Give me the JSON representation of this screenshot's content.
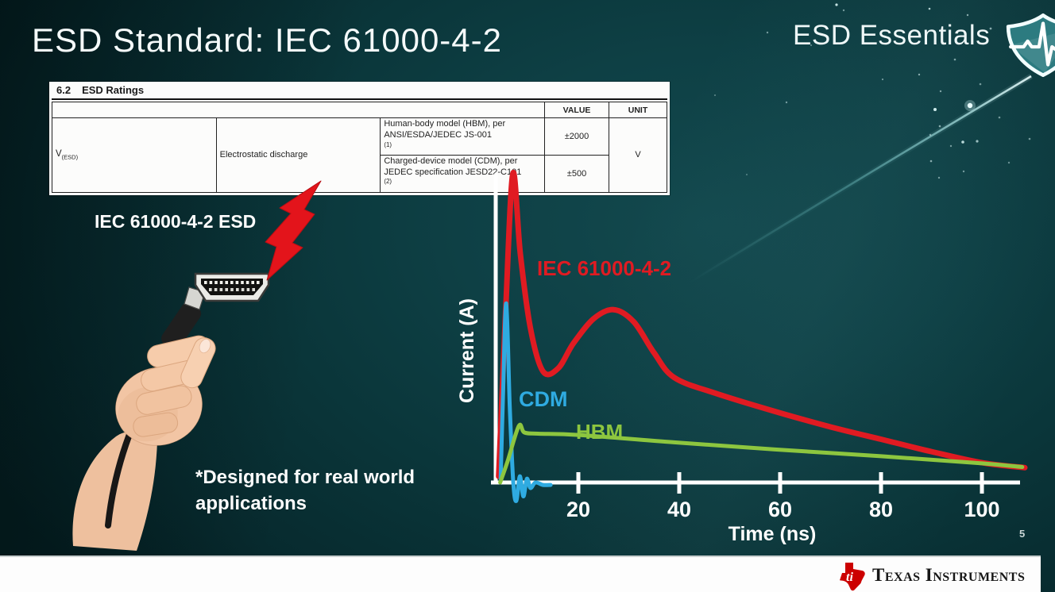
{
  "slide": {
    "title": "ESD Standard: IEC 61000-4-2",
    "brand": "ESD Essentials",
    "page_number": "5"
  },
  "ratings_table": {
    "section_no": "6.2",
    "section_title": "ESD Ratings",
    "headers": {
      "value": "VALUE",
      "unit": "UNIT"
    },
    "symbol": "V",
    "symbol_subscript": "(ESD)",
    "parameter": "Electrostatic discharge",
    "rows": [
      {
        "description": "Human-body model (HBM), per ANSI/ESDA/JEDEC JS-001",
        "superscript": "(1)",
        "value": "±2000"
      },
      {
        "description": "Charged-device model (CDM), per JEDEC specification JESD22-C101",
        "superscript": "(2)",
        "value": "±500"
      }
    ],
    "unit": "V"
  },
  "illustration": {
    "label": "IEC 61000-4-2 ESD",
    "footnote_lines": [
      "*Designed for real world",
      "applications"
    ]
  },
  "chart_data": {
    "type": "line",
    "title": "",
    "xlabel": "Time (ns)",
    "ylabel": "Current (A)",
    "x_ticks": [
      20,
      40,
      60,
      80,
      100
    ],
    "xlim": [
      0,
      110
    ],
    "ylim": [
      -0.07,
      1.05
    ],
    "y_unit": "normalized (IEC peak = 1.0), no y tick labels shown",
    "grid": false,
    "legend_position": "inline-labels",
    "axis_color": "#ffffff",
    "series": [
      {
        "name": "IEC 61000-4-2",
        "color": "#e01b22",
        "x": [
          4.2,
          5.5,
          7,
          8.5,
          10.5,
          13,
          16,
          19,
          23,
          27,
          31,
          35,
          39,
          47,
          59,
          70,
          80,
          90,
          100,
          108.5
        ],
        "y": [
          0.02,
          0.52,
          1.0,
          0.74,
          0.5,
          0.36,
          0.37,
          0.45,
          0.53,
          0.56,
          0.52,
          0.42,
          0.34,
          0.29,
          0.23,
          0.18,
          0.14,
          0.1,
          0.064,
          0.048
        ]
      },
      {
        "name": "CDM",
        "color": "#2fabe1",
        "x": [
          4.6,
          5.1,
          5.7,
          6.4,
          7.1,
          7.7,
          8.4,
          9.1,
          9.8,
          10.5,
          11.5,
          13,
          14.5
        ],
        "y": [
          0.01,
          0.3,
          0.58,
          0.25,
          0,
          -0.06,
          0.02,
          -0.045,
          0.012,
          -0.018,
          0,
          -0.008,
          -0.008
        ]
      },
      {
        "name": "HBM",
        "color": "#8dc63f",
        "x": [
          4.5,
          6,
          8.2,
          9.3,
          12,
          20,
          39,
          59,
          80,
          100,
          108
        ],
        "y": [
          0,
          0.07,
          0.183,
          0.162,
          0.158,
          0.154,
          0.13,
          0.107,
          0.085,
          0.062,
          0.05
        ]
      }
    ]
  },
  "footer": {
    "logo_text": "Texas Instruments"
  }
}
